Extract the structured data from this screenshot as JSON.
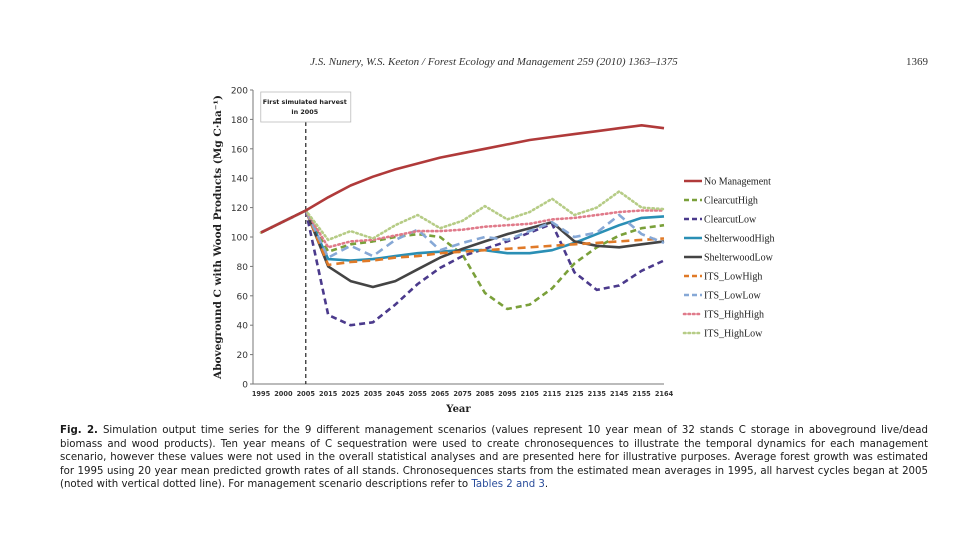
{
  "header": {
    "running_head": "J.S. Nunery, W.S. Keeton / Forest Ecology and Management 259 (2010) 1363–1375",
    "page_number": "1369"
  },
  "chart_data": {
    "type": "line",
    "xlabel": "Year",
    "ylabel": "Aboveground C with Wood Products (Mg C·ha⁻¹)",
    "xticks": [
      1995,
      2000,
      2005,
      2015,
      2025,
      2035,
      2045,
      2055,
      2065,
      2075,
      2085,
      2095,
      2105,
      2115,
      2125,
      2135,
      2145,
      2155,
      2164
    ],
    "ylim": [
      0,
      200
    ],
    "yticks": [
      0,
      20,
      40,
      60,
      80,
      100,
      120,
      140,
      160,
      180,
      200
    ],
    "annotation": {
      "line1": "First simulated harvest",
      "line2": "in 2005",
      "x": 2005
    },
    "legend_position": "right",
    "series": [
      {
        "name": "No Management",
        "color": "#b03a3a",
        "dash": "solid",
        "points": [
          [
            1995,
            103
          ],
          [
            2005,
            118
          ],
          [
            2015,
            127
          ],
          [
            2025,
            135
          ],
          [
            2035,
            141
          ],
          [
            2045,
            146
          ],
          [
            2055,
            150
          ],
          [
            2065,
            154
          ],
          [
            2075,
            157
          ],
          [
            2085,
            160
          ],
          [
            2095,
            163
          ],
          [
            2105,
            166
          ],
          [
            2115,
            168
          ],
          [
            2125,
            170
          ],
          [
            2135,
            172
          ],
          [
            2145,
            174
          ],
          [
            2155,
            176
          ],
          [
            2164,
            174
          ]
        ]
      },
      {
        "name": "ClearcutHigh",
        "color": "#7aa03a",
        "dash": "dash",
        "points": [
          [
            1995,
            103
          ],
          [
            2005,
            118
          ],
          [
            2015,
            90
          ],
          [
            2025,
            95
          ],
          [
            2035,
            97
          ],
          [
            2045,
            100
          ],
          [
            2055,
            102
          ],
          [
            2065,
            100
          ],
          [
            2075,
            88
          ],
          [
            2085,
            62
          ],
          [
            2095,
            51
          ],
          [
            2105,
            54
          ],
          [
            2115,
            65
          ],
          [
            2125,
            82
          ],
          [
            2135,
            93
          ],
          [
            2145,
            101
          ],
          [
            2155,
            106
          ],
          [
            2164,
            108
          ]
        ]
      },
      {
        "name": "ClearcutLow",
        "color": "#4b3a8c",
        "dash": "dash",
        "points": [
          [
            1995,
            103
          ],
          [
            2005,
            118
          ],
          [
            2015,
            47
          ],
          [
            2025,
            40
          ],
          [
            2035,
            42
          ],
          [
            2045,
            54
          ],
          [
            2055,
            68
          ],
          [
            2065,
            79
          ],
          [
            2075,
            87
          ],
          [
            2085,
            92
          ],
          [
            2095,
            97
          ],
          [
            2105,
            103
          ],
          [
            2115,
            109
          ],
          [
            2125,
            76
          ],
          [
            2135,
            64
          ],
          [
            2145,
            67
          ],
          [
            2155,
            77
          ],
          [
            2164,
            84
          ]
        ]
      },
      {
        "name": "ShelterwoodHigh",
        "color": "#2a8fb5",
        "dash": "solid",
        "points": [
          [
            1995,
            103
          ],
          [
            2005,
            118
          ],
          [
            2015,
            85
          ],
          [
            2025,
            84
          ],
          [
            2035,
            85
          ],
          [
            2045,
            87
          ],
          [
            2055,
            89
          ],
          [
            2065,
            90
          ],
          [
            2075,
            91
          ],
          [
            2085,
            91
          ],
          [
            2095,
            89
          ],
          [
            2105,
            89
          ],
          [
            2115,
            91
          ],
          [
            2125,
            96
          ],
          [
            2135,
            102
          ],
          [
            2145,
            108
          ],
          [
            2155,
            113
          ],
          [
            2164,
            114
          ]
        ]
      },
      {
        "name": "ShelterwoodLow",
        "color": "#444444",
        "dash": "solid",
        "points": [
          [
            1995,
            103
          ],
          [
            2005,
            118
          ],
          [
            2015,
            80
          ],
          [
            2025,
            70
          ],
          [
            2035,
            66
          ],
          [
            2045,
            70
          ],
          [
            2055,
            78
          ],
          [
            2065,
            86
          ],
          [
            2075,
            92
          ],
          [
            2085,
            97
          ],
          [
            2095,
            102
          ],
          [
            2105,
            106
          ],
          [
            2115,
            110
          ],
          [
            2125,
            97
          ],
          [
            2135,
            94
          ],
          [
            2145,
            93
          ],
          [
            2155,
            95
          ],
          [
            2164,
            97
          ]
        ]
      },
      {
        "name": "ITS_LowHigh",
        "color": "#e07a28",
        "dash": "longdash",
        "points": [
          [
            1995,
            103
          ],
          [
            2005,
            118
          ],
          [
            2015,
            81
          ],
          [
            2025,
            83
          ],
          [
            2035,
            84
          ],
          [
            2045,
            86
          ],
          [
            2055,
            87
          ],
          [
            2065,
            89
          ],
          [
            2075,
            90
          ],
          [
            2085,
            91
          ],
          [
            2095,
            92
          ],
          [
            2105,
            93
          ],
          [
            2115,
            94
          ],
          [
            2125,
            95
          ],
          [
            2135,
            96
          ],
          [
            2145,
            97
          ],
          [
            2155,
            98
          ],
          [
            2164,
            99
          ]
        ]
      },
      {
        "name": "ITS_LowLow",
        "color": "#86a8d6",
        "dash": "longdash",
        "points": [
          [
            1995,
            103
          ],
          [
            2005,
            118
          ],
          [
            2015,
            86
          ],
          [
            2025,
            94
          ],
          [
            2035,
            87
          ],
          [
            2045,
            98
          ],
          [
            2055,
            105
          ],
          [
            2065,
            91
          ],
          [
            2075,
            96
          ],
          [
            2085,
            100
          ],
          [
            2095,
            98
          ],
          [
            2105,
            104
          ],
          [
            2115,
            110
          ],
          [
            2125,
            100
          ],
          [
            2135,
            103
          ],
          [
            2145,
            115
          ],
          [
            2155,
            102
          ],
          [
            2164,
            96
          ]
        ]
      },
      {
        "name": "ITS_HighHigh",
        "color": "#e07a8a",
        "dash": "dot",
        "points": [
          [
            1995,
            103
          ],
          [
            2005,
            118
          ],
          [
            2015,
            93
          ],
          [
            2025,
            97
          ],
          [
            2035,
            98
          ],
          [
            2045,
            101
          ],
          [
            2055,
            104
          ],
          [
            2065,
            104
          ],
          [
            2075,
            105
          ],
          [
            2085,
            107
          ],
          [
            2095,
            108
          ],
          [
            2105,
            109
          ],
          [
            2115,
            112
          ],
          [
            2125,
            113
          ],
          [
            2135,
            115
          ],
          [
            2145,
            117
          ],
          [
            2155,
            118
          ],
          [
            2164,
            118
          ]
        ]
      },
      {
        "name": "ITS_HighLow",
        "color": "#b6cc86",
        "dash": "dot",
        "points": [
          [
            1995,
            103
          ],
          [
            2005,
            118
          ],
          [
            2015,
            98
          ],
          [
            2025,
            104
          ],
          [
            2035,
            99
          ],
          [
            2045,
            108
          ],
          [
            2055,
            115
          ],
          [
            2065,
            106
          ],
          [
            2075,
            111
          ],
          [
            2085,
            121
          ],
          [
            2095,
            112
          ],
          [
            2105,
            117
          ],
          [
            2115,
            126
          ],
          [
            2125,
            115
          ],
          [
            2135,
            120
          ],
          [
            2145,
            131
          ],
          [
            2155,
            120
          ],
          [
            2164,
            119
          ]
        ]
      }
    ]
  },
  "caption": {
    "label": "Fig. 2.",
    "text": "Simulation output time series for the 9 different management scenarios (values represent 10 year mean of 32 stands C storage in aboveground live/dead biomass and wood products). Ten year means of C sequestration were used to create chronosequences to illustrate the temporal dynamics for each management scenario, however these values were not used in the overall statistical analyses and are presented here for illustrative purposes. Average forest growth was estimated for 1995 using 20 year mean predicted growth rates of all stands. Chronosequences starts from the estimated mean averages in 1995, all harvest cycles began at 2005 (noted with vertical dotted line). For management scenario descriptions refer to",
    "link": "Tables 2 and 3",
    "end": "."
  }
}
